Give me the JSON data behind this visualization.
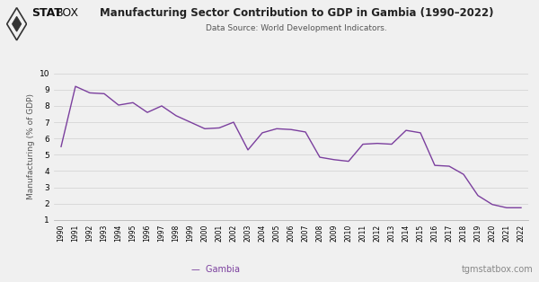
{
  "title": "Manufacturing Sector Contribution to GDP in Gambia (1990–2022)",
  "subtitle": "Data Source: World Development Indicators.",
  "ylabel": "Manufacturing (% of GDP)",
  "line_label": "Gambia",
  "line_color": "#7b3f9e",
  "bg_color": "#f0f0f0",
  "grid_color": "#d0d0d0",
  "ylim": [
    1,
    10
  ],
  "yticks": [
    1,
    2,
    3,
    4,
    5,
    6,
    7,
    8,
    9,
    10
  ],
  "footer_left": "—  Gambia",
  "footer_right": "tgmstatbox.com",
  "years": [
    1990,
    1991,
    1992,
    1993,
    1994,
    1995,
    1996,
    1997,
    1998,
    1999,
    2000,
    2001,
    2002,
    2003,
    2004,
    2005,
    2006,
    2007,
    2008,
    2009,
    2010,
    2011,
    2012,
    2013,
    2014,
    2015,
    2016,
    2017,
    2018,
    2019,
    2020,
    2021,
    2022
  ],
  "values": [
    5.5,
    9.2,
    8.8,
    8.75,
    8.05,
    8.2,
    7.6,
    8.0,
    7.4,
    7.0,
    6.6,
    6.65,
    7.0,
    5.3,
    6.35,
    6.6,
    6.55,
    6.4,
    4.85,
    4.7,
    4.6,
    5.65,
    5.7,
    5.65,
    6.5,
    6.35,
    4.35,
    4.3,
    3.8,
    2.5,
    1.95,
    1.75,
    1.75
  ]
}
